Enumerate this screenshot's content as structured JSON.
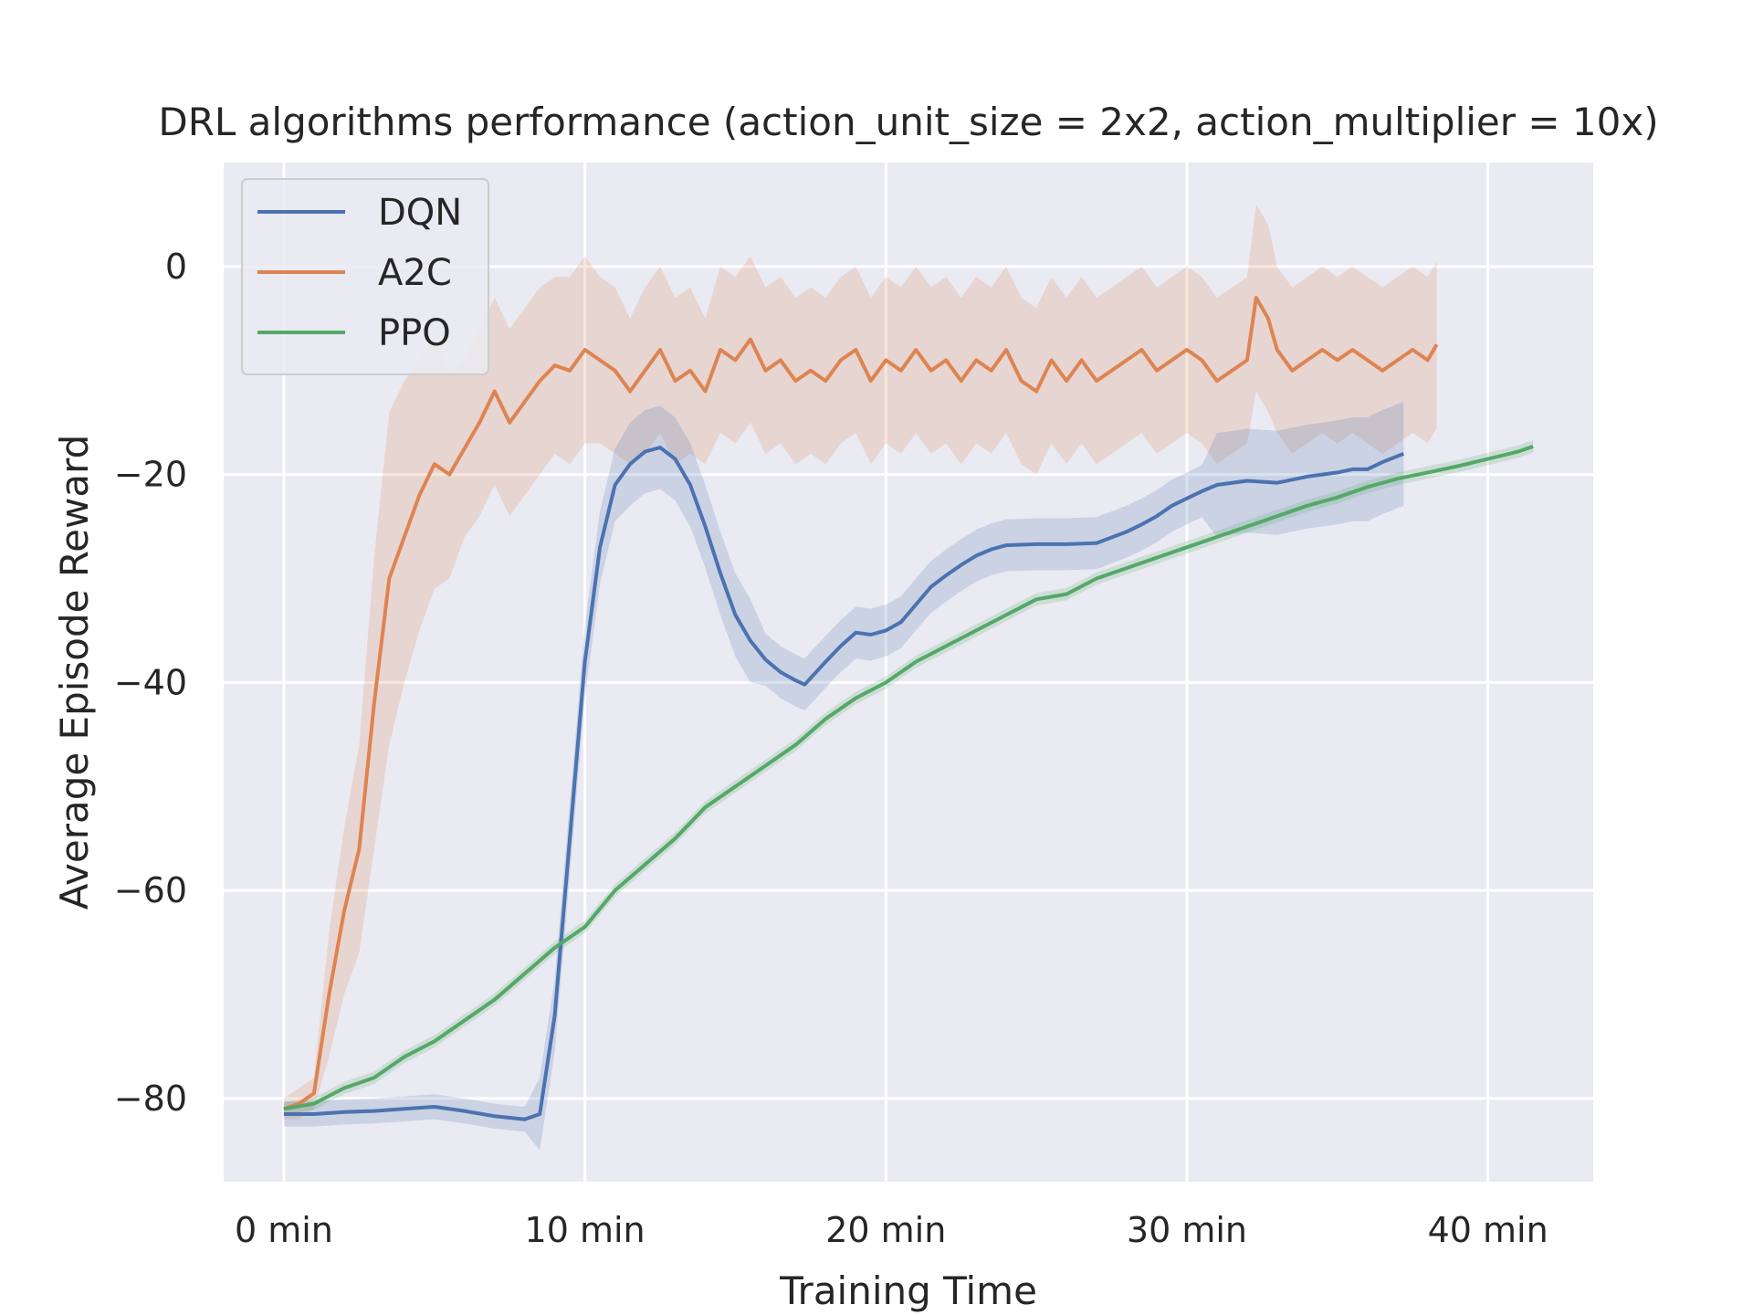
{
  "chart_data": {
    "type": "line",
    "title": "DRL algorithms performance (action_unit_size = 2x2, action_multiplier = 10x)",
    "xlabel": "Training Time",
    "ylabel": "Average Episode Reward",
    "xlim": [
      -2,
      43.5
    ],
    "ylim": [
      -88,
      10
    ],
    "xticks": [
      0,
      10,
      20,
      30,
      40
    ],
    "xtick_labels": [
      "0 min",
      "10 min",
      "20 min",
      "30 min",
      "40 min"
    ],
    "yticks": [
      0,
      -20,
      -40,
      -60,
      -80
    ],
    "ytick_labels": [
      "0",
      "−20",
      "−40",
      "−60",
      "−80"
    ],
    "grid": true,
    "legend_position": "top-left",
    "series": [
      {
        "name": "DQN",
        "color": "#4c72b0",
        "x": [
          0,
          1,
          2,
          3,
          4,
          5,
          6,
          7,
          8,
          8.5,
          9,
          9.5,
          10,
          10.5,
          11,
          11.5,
          12,
          12.5,
          13,
          13.5,
          14,
          14.5,
          15,
          15.5,
          16,
          16.5,
          17,
          17.3,
          18,
          18.5,
          19,
          19.5,
          20,
          20.5,
          21,
          21.5,
          22,
          22.5,
          23,
          23.5,
          24,
          25,
          26,
          27,
          28,
          28.5,
          29,
          29.5,
          30,
          30.5,
          31,
          32,
          33,
          34,
          35,
          35.5,
          36,
          36.5,
          37.2
        ],
        "y": [
          -81.5,
          -81.5,
          -81.3,
          -81.2,
          -81,
          -80.8,
          -81.2,
          -81.7,
          -82,
          -81.5,
          -72,
          -55,
          -38,
          -27,
          -21,
          -19,
          -17.8,
          -17.4,
          -18.5,
          -21,
          -25,
          -29.5,
          -33.5,
          -36,
          -37.8,
          -39,
          -39.8,
          -40.2,
          -38,
          -36.5,
          -35.2,
          -35.4,
          -35,
          -34.2,
          -32.5,
          -30.8,
          -29.7,
          -28.7,
          -27.8,
          -27.2,
          -26.8,
          -26.7,
          -26.7,
          -26.6,
          -25.5,
          -24.8,
          -24,
          -23,
          -22.3,
          -21.6,
          -21,
          -20.6,
          -20.8,
          -20.2,
          -19.8,
          -19.5,
          -19.5,
          -18.8,
          -18
        ]
      },
      {
        "name": "A2C",
        "color": "#dd8452",
        "x": [
          0,
          0.5,
          1,
          1.5,
          2,
          2.5,
          3,
          3.5,
          4,
          4.5,
          5,
          5.5,
          6,
          6.5,
          7,
          7.5,
          8,
          8.5,
          9,
          9.5,
          10,
          10.5,
          11,
          11.5,
          12,
          12.5,
          13,
          13.5,
          14,
          14.5,
          15,
          15.5,
          16,
          16.5,
          17,
          17.5,
          18,
          18.5,
          19,
          19.5,
          20,
          20.5,
          21,
          21.5,
          22,
          22.5,
          23,
          23.5,
          24,
          24.5,
          25,
          25.5,
          26,
          26.5,
          27,
          27.5,
          28,
          28.5,
          29,
          29.5,
          30,
          30.5,
          31,
          31.5,
          32,
          32.3,
          32.7,
          33,
          33.5,
          34,
          34.5,
          35,
          35.5,
          36,
          36.5,
          37,
          37.5,
          38,
          38.3
        ],
        "y": [
          -81,
          -80.5,
          -79.5,
          -70,
          -62,
          -56,
          -42,
          -30,
          -26,
          -22,
          -19,
          -20,
          -17.5,
          -15,
          -12,
          -15,
          -13,
          -11,
          -9.5,
          -10,
          -8,
          -9,
          -10,
          -12,
          -10,
          -8,
          -11,
          -10,
          -12,
          -8,
          -9,
          -7,
          -10,
          -9,
          -11,
          -10,
          -11,
          -9,
          -8,
          -11,
          -9,
          -10,
          -8,
          -10,
          -9,
          -11,
          -9,
          -10,
          -8,
          -11,
          -12,
          -9,
          -11,
          -9,
          -11,
          -10,
          -9,
          -8,
          -10,
          -9,
          -8,
          -9,
          -11,
          -10,
          -9,
          -3,
          -5,
          -8,
          -10,
          -9,
          -8,
          -9,
          -8,
          -9,
          -10,
          -9,
          -8,
          -9,
          -7.5
        ],
        "lower": [
          -82,
          -82,
          -81,
          -76,
          -70,
          -66,
          -56,
          -46,
          -40,
          -35,
          -31,
          -30,
          -26,
          -24,
          -21,
          -24,
          -22,
          -20,
          -18,
          -19,
          -17,
          -17,
          -18,
          -19,
          -18,
          -16,
          -19,
          -18,
          -19,
          -16,
          -17,
          -15,
          -18,
          -17,
          -19,
          -18,
          -19,
          -17,
          -16,
          -19,
          -17,
          -18,
          -16,
          -18,
          -17,
          -19,
          -17,
          -18,
          -16,
          -19,
          -20,
          -17,
          -19,
          -17,
          -19,
          -18,
          -17,
          -16,
          -18,
          -17,
          -16,
          -17,
          -19,
          -18,
          -17,
          -12,
          -14,
          -16,
          -18,
          -17,
          -16,
          -17,
          -16,
          -17,
          -18,
          -17,
          -16,
          -17,
          -15.5
        ],
        "upper": [
          -80,
          -79,
          -78,
          -64,
          -54,
          -46,
          -28,
          -14,
          -11,
          -9,
          -7,
          -10,
          -9,
          -6,
          -3,
          -6,
          -4,
          -2,
          -1,
          -1,
          1,
          -1,
          -2,
          -5,
          -2,
          0,
          -3,
          -2,
          -5,
          0,
          -1,
          1,
          -2,
          -1,
          -3,
          -2,
          -3,
          -1,
          0,
          -3,
          -1,
          -2,
          0,
          -2,
          -1,
          -3,
          -1,
          -2,
          0,
          -3,
          -4,
          -1,
          -3,
          -1,
          -3,
          -2,
          -1,
          0,
          -2,
          -1,
          0,
          -1,
          -3,
          -2,
          -1,
          6,
          4,
          0,
          -2,
          -1,
          0,
          -1,
          0,
          -1,
          -2,
          -1,
          0,
          -1,
          0.5
        ]
      },
      {
        "name": "PPO",
        "color": "#55a868",
        "x": [
          0,
          1,
          2,
          3,
          4,
          5,
          6,
          7,
          8,
          9,
          10,
          11,
          12,
          13,
          14,
          15,
          16,
          17,
          18,
          19,
          20,
          21,
          22,
          23,
          24,
          25,
          26,
          27,
          28,
          29,
          30,
          31,
          32,
          33,
          34,
          35,
          36,
          37,
          38,
          39,
          40,
          41,
          41.5
        ],
        "y": [
          -81,
          -80.5,
          -79,
          -78,
          -76,
          -74.5,
          -72.5,
          -70.5,
          -68,
          -65.5,
          -63.5,
          -60,
          -57.5,
          -55,
          -52,
          -50,
          -48,
          -46,
          -43.5,
          -41.5,
          -40,
          -38,
          -36.5,
          -35,
          -33.5,
          -32,
          -31.5,
          -30,
          -29,
          -28,
          -27,
          -26,
          -25,
          -24,
          -23,
          -22.2,
          -21.2,
          -20.4,
          -19.8,
          -19.2,
          -18.5,
          -17.8,
          -17.3
        ]
      }
    ]
  }
}
